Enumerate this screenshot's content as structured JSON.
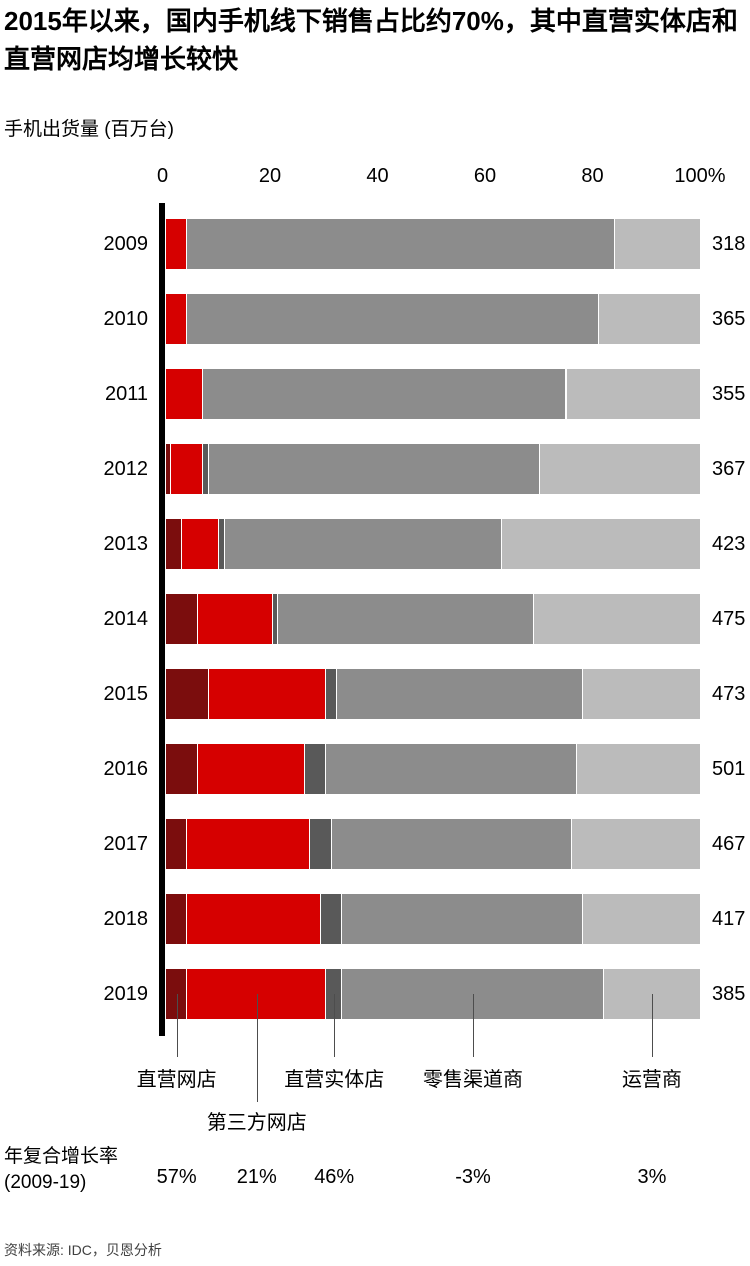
{
  "title": {
    "line1": "2015年以来，国内手机线下销售占比约70%，其中直营实体店和",
    "line2": "直营网店均增长较快"
  },
  "subtitle": "手机出货量 (百万台)",
  "axis": {
    "ticks": [
      "0",
      "20",
      "40",
      "60",
      "80",
      "100%"
    ]
  },
  "cagr": {
    "label_line1": "年复合增长率",
    "label_line2": "(2009-19)"
  },
  "source": "资料来源: IDC，贝恩分析",
  "chart_data": {
    "type": "bar",
    "stacked": true,
    "orientation": "horizontal",
    "title": "2015年以来，国内手机线下销售占比约70%，其中直营实体店和直营网店均增长较快",
    "axis_label": "手机出货量 (百万台)",
    "x_ticks": [
      "0",
      "20",
      "40",
      "60",
      "80",
      "100%"
    ],
    "xlim": [
      0,
      100
    ],
    "legend_position": "bottom",
    "categories": [
      "2009",
      "2010",
      "2011",
      "2012",
      "2013",
      "2014",
      "2015",
      "2016",
      "2017",
      "2018",
      "2019"
    ],
    "totals": [
      318,
      365,
      355,
      367,
      423,
      475,
      473,
      501,
      467,
      417,
      385
    ],
    "series": [
      {
        "name": "直营网店",
        "color": "#7B0D0D",
        "cagr": "57%",
        "legend_row": 1,
        "values": [
          0,
          0,
          0,
          1,
          3,
          6,
          8,
          6,
          4,
          4,
          4
        ]
      },
      {
        "name": "第三方网店",
        "color": "#D60000",
        "cagr": "21%",
        "legend_row": 2,
        "values": [
          4,
          4,
          7,
          6,
          7,
          14,
          22,
          20,
          23,
          25,
          26
        ]
      },
      {
        "name": "直营实体店",
        "color": "#595959",
        "cagr": "46%",
        "legend_row": 1,
        "values": [
          0,
          0,
          0,
          1,
          1,
          1,
          2,
          4,
          4,
          4,
          3
        ]
      },
      {
        "name": "零售渠道商",
        "color": "#8C8C8C",
        "cagr": "-3%",
        "legend_row": 1,
        "values": [
          80,
          77,
          68,
          62,
          52,
          48,
          46,
          47,
          45,
          45,
          49
        ]
      },
      {
        "name": "运营商",
        "color": "#BBBBBB",
        "cagr": "3%",
        "legend_row": 1,
        "values": [
          16,
          19,
          25,
          30,
          37,
          31,
          22,
          23,
          24,
          22,
          18
        ]
      }
    ],
    "cagr_label": "年复合增长率 (2009-19)",
    "source": "资料来源: IDC，贝恩分析"
  }
}
